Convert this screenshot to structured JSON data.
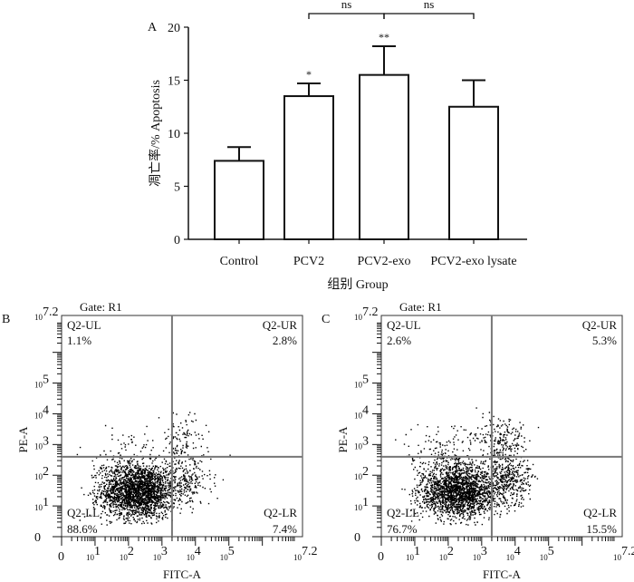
{
  "panel_labels": {
    "a": "A",
    "b": "B",
    "c": "C"
  },
  "colors": {
    "ink": "#111111",
    "bar_fill": "#ffffff",
    "quadrant_line": "#777777",
    "dots": "#000000"
  },
  "chart_data": [
    {
      "type": "bar",
      "panel": "A",
      "categories": [
        "Control",
        "PCV2",
        "PCV2-exo",
        "PCV2-exo lysate"
      ],
      "values": [
        7.4,
        13.5,
        15.5,
        12.5
      ],
      "errors": [
        1.3,
        1.2,
        2.7,
        2.5
      ],
      "significance": [
        "",
        "*",
        "**",
        ""
      ],
      "comparisons": [
        {
          "from": 1,
          "to": 2,
          "label": "ns"
        },
        {
          "from": 2,
          "to": 3,
          "label": "ns"
        }
      ],
      "ylabel": "凋亡率/% Apoptosis",
      "xlabel": "组别 Group",
      "ylim": [
        0,
        20
      ],
      "yticks": [
        0,
        5,
        10,
        15,
        20
      ],
      "grid": false
    },
    {
      "type": "scatter",
      "panel": "B",
      "title": "Gate: R1",
      "xlabel": "FITC-A",
      "ylabel": "PE-A",
      "xlim": [
        0,
        7.2
      ],
      "ylim": [
        0,
        7.2
      ],
      "ticks": [
        {
          "base": "",
          "exp": "0"
        },
        {
          "base": "10",
          "exp": "1"
        },
        {
          "base": "10",
          "exp": "2"
        },
        {
          "base": "10",
          "exp": "3"
        },
        {
          "base": "10",
          "exp": "4"
        },
        {
          "base": "10",
          "exp": "5"
        },
        {
          "base": "10",
          "exp": "7.2"
        }
      ],
      "gate_x": 3.3,
      "gate_y": 2.6,
      "quadrants": [
        {
          "name": "Q2-UL",
          "value": "1.1%"
        },
        {
          "name": "Q2-UR",
          "value": "2.8%"
        },
        {
          "name": "Q2-LL",
          "value": "88.6%"
        },
        {
          "name": "Q2-LR",
          "value": "7.4%"
        }
      ]
    },
    {
      "type": "scatter",
      "panel": "C",
      "title": "Gate: R1",
      "xlabel": "FITC-A",
      "ylabel": "PE-A",
      "xlim": [
        0,
        7.2
      ],
      "ylim": [
        0,
        7.2
      ],
      "ticks": [
        {
          "base": "",
          "exp": "0"
        },
        {
          "base": "10",
          "exp": "1"
        },
        {
          "base": "10",
          "exp": "2"
        },
        {
          "base": "10",
          "exp": "3"
        },
        {
          "base": "10",
          "exp": "4"
        },
        {
          "base": "10",
          "exp": "5"
        },
        {
          "base": "10",
          "exp": "7.2"
        }
      ],
      "gate_x": 3.3,
      "gate_y": 2.6,
      "quadrants": [
        {
          "name": "Q2-UL",
          "value": "2.6%"
        },
        {
          "name": "Q2-UR",
          "value": "5.3%"
        },
        {
          "name": "Q2-LL",
          "value": "76.7%"
        },
        {
          "name": "Q2-LR",
          "value": "15.5%"
        }
      ]
    }
  ]
}
